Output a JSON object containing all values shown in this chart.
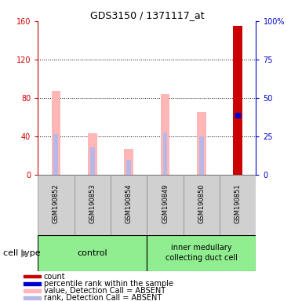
{
  "title": "GDS3150 / 1371117_at",
  "samples": [
    "GSM190852",
    "GSM190853",
    "GSM190854",
    "GSM190849",
    "GSM190850",
    "GSM190851"
  ],
  "value_bars": [
    87,
    43,
    27,
    84,
    65,
    0
  ],
  "rank_bars": [
    42,
    28,
    15,
    44,
    40,
    0
  ],
  "value_color": "#ffb6b6",
  "rank_color": "#b8b8e8",
  "count_bar_index": 5,
  "count_bar_color": "#cc0000",
  "count_bar_height": 155,
  "percentile_bar_index": 5,
  "percentile_bar_value": 62,
  "percentile_color": "#0000cc",
  "ylim_left": [
    0,
    160
  ],
  "ylim_right": [
    0,
    100
  ],
  "yticks_left": [
    0,
    40,
    80,
    120,
    160
  ],
  "ytick_labels_left": [
    "0",
    "40",
    "80",
    "120",
    "160"
  ],
  "ytick_labels_right": [
    "0",
    "25",
    "50",
    "75",
    "100%"
  ],
  "left_axis_color": "#cc0000",
  "right_axis_color": "#0000cc",
  "grid_lines": [
    40,
    80,
    120
  ],
  "bar_width": 0.18,
  "legend_items": [
    {
      "color": "#cc0000",
      "label": "count"
    },
    {
      "color": "#0000cc",
      "label": "percentile rank within the sample"
    },
    {
      "color": "#ffb6b6",
      "label": "value, Detection Call = ABSENT"
    },
    {
      "color": "#b8b8e8",
      "label": "rank, Detection Call = ABSENT"
    }
  ],
  "cell_type_label": "cell type",
  "control_label": "control",
  "imcd_label": "inner medullary\ncollecting duct cell",
  "cell_type_bg": "#90ee90",
  "sample_box_bg": "#d0d0d0",
  "fig_bg": "#ffffff",
  "plot_bg": "#ffffff"
}
